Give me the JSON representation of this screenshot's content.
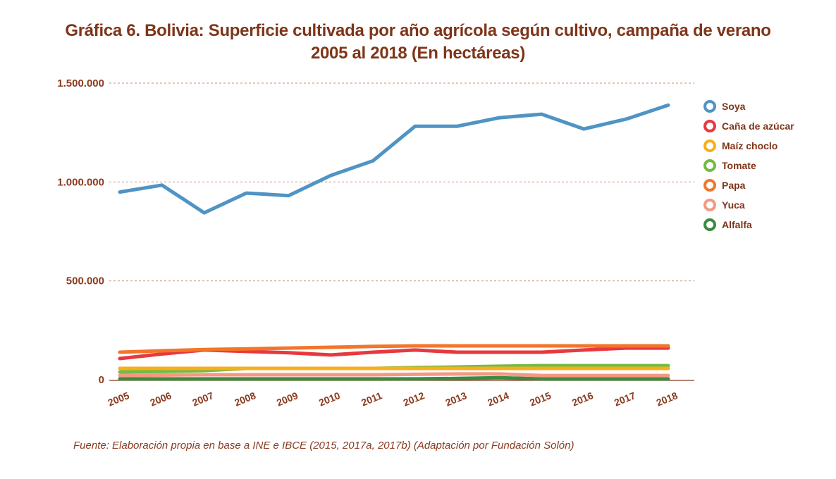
{
  "title_lines": [
    "Gráfica 6. Bolivia: Superficie cultivada por año agrícola según cultivo, campaña de verano",
    "2005 al 2018 (En hectáreas)"
  ],
  "source": "Fuente: Elaboración propia en base a INE e IBCE (2015, 2017a, 2017b) (Adaptación por Fundación Solón)",
  "chart_data": {
    "type": "line",
    "title": "Gráfica 6. Bolivia: Superficie cultivada por año agrícola según cultivo, campaña de verano 2005 al 2018 (En hectáreas)",
    "xlabel": "",
    "ylabel": "",
    "x": [
      "2005",
      "2006",
      "2007",
      "2008",
      "2009",
      "2010",
      "2011",
      "2012",
      "2013",
      "2014",
      "2015",
      "2016",
      "2017",
      "2018"
    ],
    "ylim": [
      0,
      1500000
    ],
    "yticks": [
      0,
      500000,
      1000000,
      1500000
    ],
    "ytick_labels": [
      "0",
      "500.000",
      "1.000.000",
      "1.500.000"
    ],
    "grid": true,
    "legend_position": "right",
    "series": [
      {
        "name": "Soya",
        "color": "#4f94c4",
        "values": [
          949000,
          984000,
          844000,
          944000,
          931000,
          1033000,
          1107000,
          1282000,
          1282000,
          1325000,
          1343000,
          1268000,
          1318000,
          1389000
        ]
      },
      {
        "name": "Caña de azúcar",
        "color": "#e8383f",
        "values": [
          107000,
          130000,
          150000,
          143000,
          136000,
          125000,
          139000,
          150000,
          139000,
          139000,
          139000,
          150000,
          160000,
          160000
        ]
      },
      {
        "name": "Maíz choclo",
        "color": "#f9ae1b",
        "values": [
          57000,
          57000,
          57000,
          57000,
          57000,
          57000,
          57000,
          57000,
          57000,
          57000,
          57000,
          57000,
          57000,
          57000
        ]
      },
      {
        "name": "Tomate",
        "color": "#72bb45",
        "values": [
          39000,
          42000,
          46000,
          57000,
          57000,
          57000,
          57000,
          61000,
          64000,
          68000,
          71000,
          71000,
          71000,
          71000
        ]
      },
      {
        "name": "Papa",
        "color": "#f2762a",
        "values": [
          139000,
          146000,
          152000,
          156000,
          160000,
          164000,
          168000,
          171000,
          171000,
          171000,
          171000,
          171000,
          171000,
          171000
        ]
      },
      {
        "name": "Yuca",
        "color": "#f59783",
        "values": [
          21000,
          23000,
          25000,
          25000,
          25000,
          25000,
          25000,
          27000,
          29000,
          29000,
          21000,
          21000,
          21000,
          21000
        ]
      },
      {
        "name": "Alfalfa",
        "color": "#3c8a3f",
        "values": [
          4000,
          4000,
          4000,
          4000,
          4000,
          4000,
          4000,
          4000,
          6000,
          10000,
          4000,
          4000,
          4000,
          4000
        ]
      }
    ]
  }
}
